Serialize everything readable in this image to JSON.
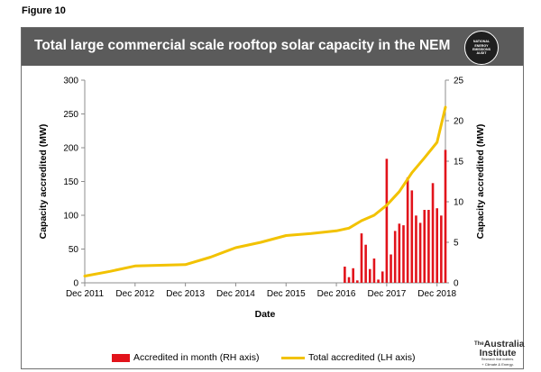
{
  "figure_label": "Figure 10",
  "header": {
    "title": "Total large commercial scale rooftop solar capacity in the NEM",
    "badge_text": "NATIONAL ENERGY EMISSIONS AUDIT"
  },
  "logo": {
    "the": "The",
    "name": "Australia Institute",
    "tagline": "Research that matters.",
    "sub": "+ Climate & Energy."
  },
  "colors": {
    "bar": "#e2131b",
    "line": "#f2c200",
    "header": "#5b5b5b"
  },
  "chart_data": {
    "type": "bar+line",
    "xlabel": "Date",
    "ylabel_left": "Capacity accredited (MW)",
    "ylabel_right": "Capacity accredited (MW)",
    "ylim_left": [
      0,
      300
    ],
    "ylim_right": [
      0,
      25
    ],
    "yticks_left": [
      "0",
      "50",
      "100",
      "150",
      "200",
      "250",
      "300"
    ],
    "yticks_right": [
      "0",
      "5",
      "10",
      "15",
      "20",
      "25"
    ],
    "xticks": [
      "Dec 2011",
      "Dec 2012",
      "Dec 2013",
      "Dec 2014",
      "Dec 2015",
      "Dec 2016",
      "Dec 2017",
      "Dec 2018"
    ],
    "x_range": [
      "Dec 2011",
      "Feb 2019"
    ],
    "grid": false,
    "legend_placement": "bottom",
    "series": [
      {
        "name": "Accredited in month (RH axis)",
        "kind": "bar",
        "axis": "right",
        "points": [
          [
            "Feb 2017",
            2.0
          ],
          [
            "Mar 2017",
            0.7
          ],
          [
            "Apr 2017",
            1.8
          ],
          [
            "May 2017",
            0.3
          ],
          [
            "Jun 2017",
            6.1
          ],
          [
            "Jul 2017",
            4.7
          ],
          [
            "Aug 2017",
            1.7
          ],
          [
            "Sep 2017",
            3.0
          ],
          [
            "Oct 2017",
            0.4
          ],
          [
            "Nov 2017",
            1.4
          ],
          [
            "Dec 2017",
            15.3
          ],
          [
            "Jan 2018",
            3.5
          ],
          [
            "Feb 2018",
            6.4
          ],
          [
            "Mar 2018",
            7.3
          ],
          [
            "Apr 2018",
            7.1
          ],
          [
            "May 2018",
            13.0
          ],
          [
            "Jun 2018",
            11.4
          ],
          [
            "Jul 2018",
            8.3
          ],
          [
            "Aug 2018",
            7.4
          ],
          [
            "Sep 2018",
            9.0
          ],
          [
            "Oct 2018",
            9.0
          ],
          [
            "Nov 2018",
            12.3
          ],
          [
            "Dec 2018",
            9.2
          ],
          [
            "Jan 2019",
            8.3
          ],
          [
            "Feb 2019",
            16.4
          ]
        ]
      },
      {
        "name": "Total accredited (LH axis)",
        "kind": "line",
        "axis": "left",
        "points": [
          [
            "Dec 2011",
            10
          ],
          [
            "Jun 2012",
            17
          ],
          [
            "Dec 2012",
            25
          ],
          [
            "Jun 2013",
            26
          ],
          [
            "Dec 2013",
            27
          ],
          [
            "Jun 2014",
            38
          ],
          [
            "Dec 2014",
            52
          ],
          [
            "Jun 2015",
            60
          ],
          [
            "Dec 2015",
            70
          ],
          [
            "Jun 2016",
            73
          ],
          [
            "Dec 2016",
            77
          ],
          [
            "Mar 2017",
            81
          ],
          [
            "Jun 2017",
            92
          ],
          [
            "Sep 2017",
            100
          ],
          [
            "Dec 2017",
            115
          ],
          [
            "Mar 2018",
            135
          ],
          [
            "Jun 2018",
            163
          ],
          [
            "Sep 2018",
            185
          ],
          [
            "Dec 2018",
            208
          ],
          [
            "Feb 2019",
            260
          ]
        ]
      }
    ]
  }
}
